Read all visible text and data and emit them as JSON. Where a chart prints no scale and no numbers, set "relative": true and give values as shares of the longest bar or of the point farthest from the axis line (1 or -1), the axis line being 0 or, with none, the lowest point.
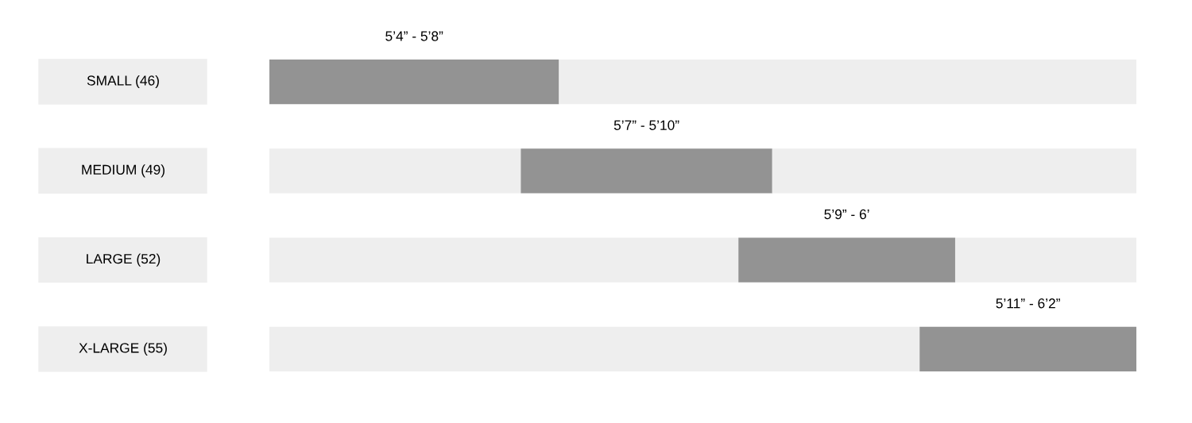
{
  "chart_data": {
    "type": "bar",
    "orientation": "horizontal",
    "relative": true,
    "stacked": true,
    "categories": [
      "SMALL (46)",
      "MEDIUM (49)",
      "LARGE (52)",
      "X-LARGE (55)"
    ],
    "series": [
      {
        "color": "#eeeeee",
        "values": [
          0,
          0.29,
          0.541,
          0.75
        ]
      },
      {
        "color": "#939393",
        "values": [
          0.334,
          0.29,
          0.25,
          0.25
        ]
      },
      {
        "color": "#eeeeee",
        "values": [
          0.666,
          0.42,
          0.209,
          0
        ]
      }
    ],
    "annotations": [
      "5’4” - 5’8”",
      "5’7” - 5’10”",
      "5’9” - 6’",
      "5’11” - 6’2”"
    ],
    "legend": false
  }
}
